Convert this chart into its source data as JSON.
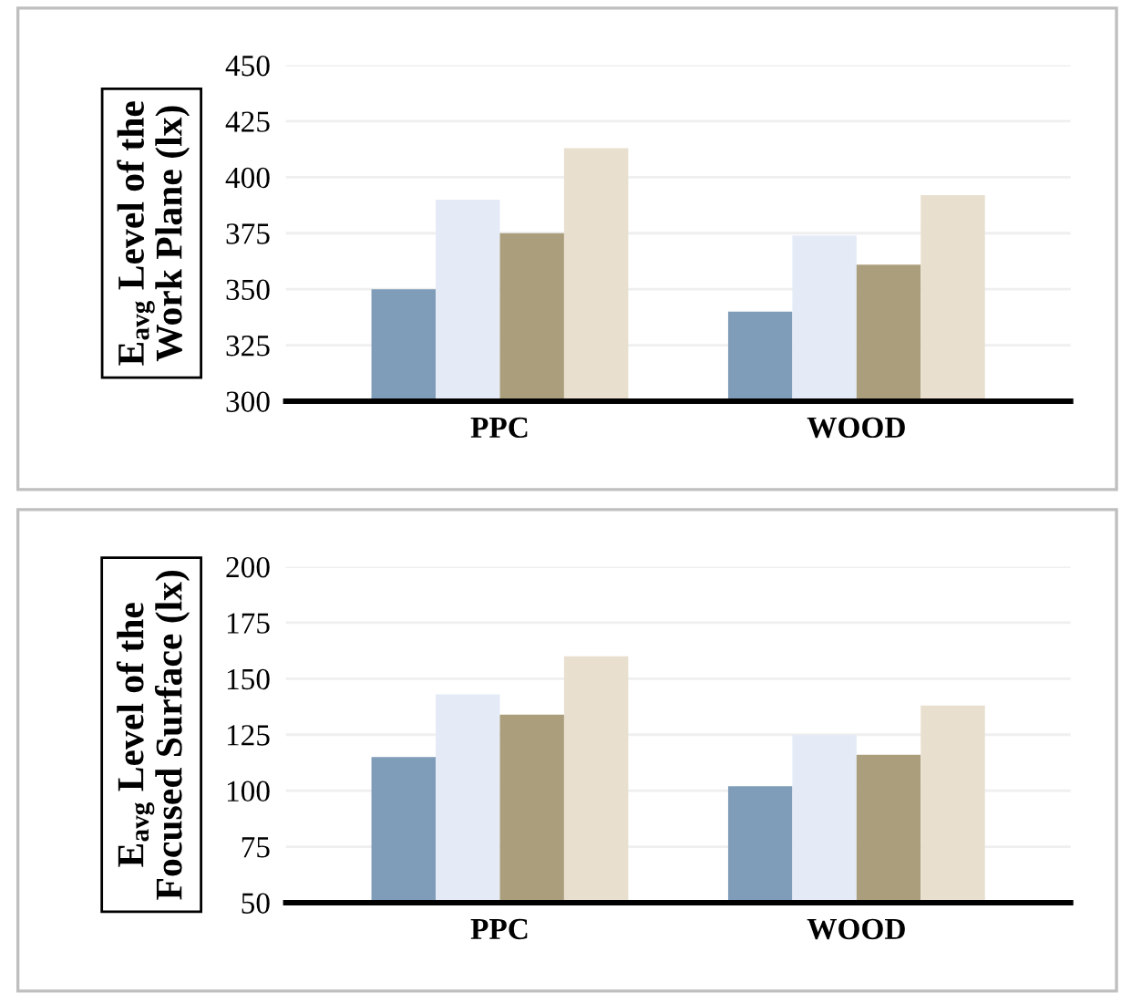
{
  "chart_data": [
    {
      "type": "bar",
      "ylabel": "E$_{avg}$ Level of the\nWork Plane (lx)",
      "categories": [
        "PPC",
        "WOOD"
      ],
      "series": [
        {
          "color": "#7f9db9",
          "values": [
            350,
            340
          ]
        },
        {
          "color": "#e4ebf7",
          "values": [
            390,
            374
          ]
        },
        {
          "color": "#ab9e7d",
          "values": [
            375,
            361
          ]
        },
        {
          "color": "#e8dfcf",
          "values": [
            413,
            392
          ]
        }
      ],
      "ylim": [
        300,
        450
      ],
      "yticks": [
        300,
        325,
        350,
        375,
        400,
        425,
        450
      ],
      "grid": "y",
      "legend": false
    },
    {
      "type": "bar",
      "ylabel": "E$_{avg}$ Level of the\nFocused Surface (lx)",
      "categories": [
        "PPC",
        "WOOD"
      ],
      "series": [
        {
          "color": "#7f9db9",
          "values": [
            115,
            102
          ]
        },
        {
          "color": "#e4ebf7",
          "values": [
            143,
            125
          ]
        },
        {
          "color": "#ab9e7d",
          "values": [
            134,
            116
          ]
        },
        {
          "color": "#e8dfcf",
          "values": [
            160,
            138
          ]
        }
      ],
      "ylim": [
        50,
        200
      ],
      "yticks": [
        50,
        75,
        100,
        125,
        150,
        175,
        200
      ],
      "grid": "y",
      "legend": false
    }
  ]
}
